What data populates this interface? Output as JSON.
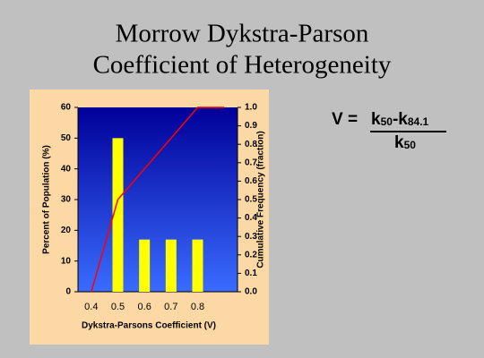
{
  "chart_data": {
    "type": "bar_line",
    "title": [
      "Morrow Dykstra-Parson",
      "Coefficient of Heterogeneity"
    ],
    "x_label": "Dykstra-Parsons Coefficient (V)",
    "y_label": "Percent of Population (%)",
    "y2_label": "Cumulative Frequency (fraction)",
    "categories": [
      "0.4",
      "0.5",
      "0.6",
      "0.7",
      "0.8",
      null
    ],
    "series": [
      {
        "name": "Percent of Population",
        "type": "bar",
        "color": "#ffff00",
        "values": [
          0,
          50,
          17,
          17,
          17,
          0
        ]
      },
      {
        "name": "Cumulative Frequency",
        "type": "line",
        "axis": "y2",
        "color": "#ff0000",
        "values": [
          0,
          0.5,
          0.667,
          0.833,
          1.0,
          1.0
        ]
      }
    ],
    "ylim": [
      0,
      60
    ],
    "yticks": [
      0,
      10,
      20,
      30,
      40,
      50,
      60
    ],
    "y2lim": [
      0,
      1
    ],
    "y2ticks": [
      {
        "value": 0,
        "label": "0.0"
      },
      0.1,
      0.2,
      0.3,
      0.4,
      0.5,
      0.6,
      0.7,
      0.8,
      0.9,
      {
        "value": 1,
        "label": "1.0"
      }
    ],
    "grid": false
  },
  "formula": {
    "lhs": "V =",
    "num_k1": "k",
    "num_sub1": "50",
    "num_k2": "-k",
    "num_sub2": "84.1",
    "den_k": "k",
    "den_sub": "50"
  }
}
